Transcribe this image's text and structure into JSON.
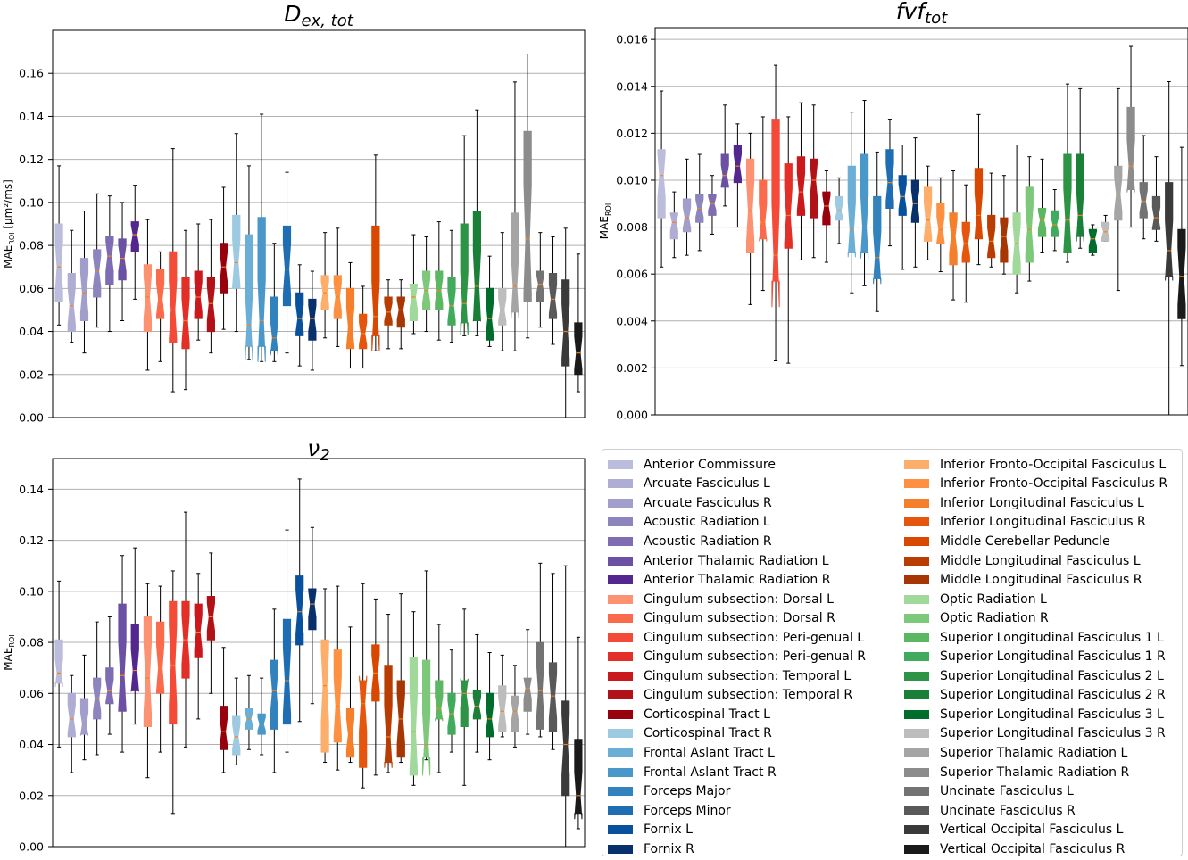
{
  "structures": [
    {
      "name": "Anterior Commissure",
      "color": "#bcbddc"
    },
    {
      "name": "Arcuate Fasciculus L",
      "color": "#b0add4"
    },
    {
      "name": "Arcuate Fasciculus R",
      "color": "#a29ecc"
    },
    {
      "name": "Acoustic Radiation L",
      "color": "#8c85be"
    },
    {
      "name": "Acoustic Radiation R",
      "color": "#7e6db2"
    },
    {
      "name": "Anterior Thalamic Radiation L",
      "color": "#6a51a3"
    },
    {
      "name": "Anterior Thalamic Radiation R",
      "color": "#54278f"
    },
    {
      "name": "Cingulum subsection: Dorsal L",
      "color": "#fc9272"
    },
    {
      "name": "Cingulum subsection: Dorsal R",
      "color": "#fb6a4a"
    },
    {
      "name": "Cingulum subsection: Peri-genual L",
      "color": "#f44b38"
    },
    {
      "name": "Cingulum subsection: Peri-genual R",
      "color": "#e32f27"
    },
    {
      "name": "Cingulum subsection: Temporal L",
      "color": "#cb181d"
    },
    {
      "name": "Cingulum subsection: Temporal R",
      "color": "#b11218"
    },
    {
      "name": "Corticospinal Tract L",
      "color": "#99000d"
    },
    {
      "name": "Corticospinal Tract R",
      "color": "#9ecae1"
    },
    {
      "name": "Frontal Aslant Tract L",
      "color": "#6baed6"
    },
    {
      "name": "Frontal Aslant Tract R",
      "color": "#4a98c9"
    },
    {
      "name": "Forceps Major",
      "color": "#3182bd"
    },
    {
      "name": "Forceps Minor",
      "color": "#1f6eb3"
    },
    {
      "name": "Fornix L",
      "color": "#08519c"
    },
    {
      "name": "Fornix R",
      "color": "#08306b"
    },
    {
      "name": "Inferior Fronto-Occipital Fasciculus L",
      "color": "#fdae6b"
    },
    {
      "name": "Inferior Fronto-Occipital Fasciculus R",
      "color": "#fd9141"
    },
    {
      "name": "Inferior Longitudinal Fasciculus L",
      "color": "#f57f2a"
    },
    {
      "name": "Inferior Longitudinal Fasciculus R",
      "color": "#e6550d"
    },
    {
      "name": "Middle Cerebellar Peduncle",
      "color": "#d94801"
    },
    {
      "name": "Middle Longitudinal Fasciculus L",
      "color": "#b93c02"
    },
    {
      "name": "Middle Longitudinal Fasciculus R",
      "color": "#a63603"
    },
    {
      "name": "Optic Radiation L",
      "color": "#a1d99b"
    },
    {
      "name": "Optic Radiation R",
      "color": "#7dc87b"
    },
    {
      "name": "Superior Longitudinal Fasciculus 1 L",
      "color": "#5cb762"
    },
    {
      "name": "Superior Longitudinal Fasciculus 1 R",
      "color": "#41ab5d"
    },
    {
      "name": "Superior Longitudinal Fasciculus 2 L",
      "color": "#2d9446"
    },
    {
      "name": "Superior Longitudinal Fasciculus 2 R",
      "color": "#1a8038"
    },
    {
      "name": "Superior Longitudinal Fasciculus 3 L",
      "color": "#006d2c"
    },
    {
      "name": "Superior Longitudinal Fasciculus 3 R",
      "color": "#bdbdbd"
    },
    {
      "name": "Superior Thalamic Radiation L",
      "color": "#a5a5a5"
    },
    {
      "name": "Superior Thalamic Radiation R",
      "color": "#8c8c8c"
    },
    {
      "name": "Uncinate Fasciculus L",
      "color": "#737373"
    },
    {
      "name": "Uncinate Fasciculus R",
      "color": "#595959"
    },
    {
      "name": "Vertical Occipital Fasciculus L",
      "color": "#3a3a3a"
    },
    {
      "name": "Vertical Occipital Fasciculus R",
      "color": "#1a1a1a"
    }
  ],
  "chart_data": [
    {
      "type": "boxplot",
      "title": "D",
      "title_sub": "ex, tot",
      "ylabel": "MAE_ROI [μm²/ms]",
      "ylabel_main": "MAE",
      "ylabel_sub": "ROI",
      "ylabel_units": " [μm²/ms]",
      "ylim": [
        0,
        0.18
      ],
      "yticks": [
        "0.00",
        "0.02",
        "0.04",
        "0.06",
        "0.08",
        "0.10",
        "0.12",
        "0.14",
        "0.16"
      ],
      "boxes": [
        [
          0.043,
          0.054,
          0.07,
          0.09,
          0.117
        ],
        [
          0.035,
          0.04,
          0.052,
          0.067,
          0.087
        ],
        [
          0.03,
          0.045,
          0.058,
          0.074,
          0.096
        ],
        [
          0.042,
          0.056,
          0.068,
          0.078,
          0.104
        ],
        [
          0.04,
          0.062,
          0.075,
          0.084,
          0.103
        ],
        [
          0.045,
          0.064,
          0.074,
          0.083,
          0.1
        ],
        [
          0.055,
          0.077,
          0.085,
          0.091,
          0.108
        ],
        [
          0.022,
          0.04,
          0.056,
          0.071,
          0.092
        ],
        [
          0.026,
          0.046,
          0.055,
          0.069,
          0.077
        ],
        [
          0.012,
          0.035,
          0.05,
          0.077,
          0.125
        ],
        [
          0.013,
          0.032,
          0.045,
          0.065,
          0.087
        ],
        [
          0.036,
          0.046,
          0.056,
          0.068,
          0.09
        ],
        [
          0.03,
          0.04,
          0.053,
          0.065,
          0.092
        ],
        [
          0.041,
          0.058,
          0.07,
          0.081,
          0.107
        ],
        [
          0.04,
          0.06,
          0.072,
          0.094,
          0.132
        ],
        [
          0.027,
          0.033,
          0.043,
          0.085,
          0.117
        ],
        [
          0.026,
          0.033,
          0.045,
          0.093,
          0.141
        ],
        [
          0.026,
          0.031,
          0.037,
          0.056,
          0.081
        ],
        [
          0.03,
          0.052,
          0.069,
          0.089,
          0.114
        ],
        [
          0.024,
          0.038,
          0.046,
          0.058,
          0.071
        ],
        [
          0.022,
          0.036,
          0.046,
          0.055,
          0.068
        ],
        [
          0.037,
          0.05,
          0.058,
          0.066,
          0.086
        ],
        [
          0.033,
          0.046,
          0.056,
          0.066,
          0.088
        ],
        [
          0.023,
          0.032,
          0.042,
          0.06,
          0.072
        ],
        [
          0.023,
          0.032,
          0.039,
          0.048,
          0.061
        ],
        [
          0.031,
          0.038,
          0.047,
          0.089,
          0.122
        ],
        [
          0.032,
          0.043,
          0.049,
          0.056,
          0.064
        ],
        [
          0.032,
          0.042,
          0.05,
          0.056,
          0.064
        ],
        [
          0.039,
          0.045,
          0.056,
          0.062,
          0.085
        ],
        [
          0.04,
          0.05,
          0.059,
          0.068,
          0.084
        ],
        [
          0.036,
          0.05,
          0.059,
          0.068,
          0.091
        ],
        [
          0.035,
          0.043,
          0.052,
          0.065,
          0.087
        ],
        [
          0.038,
          0.044,
          0.053,
          0.09,
          0.131
        ],
        [
          0.038,
          0.045,
          0.061,
          0.096,
          0.143
        ],
        [
          0.033,
          0.036,
          0.046,
          0.06,
          0.075
        ],
        [
          0.031,
          0.043,
          0.05,
          0.06,
          0.086
        ],
        [
          0.031,
          0.049,
          0.061,
          0.095,
          0.156
        ],
        [
          0.037,
          0.054,
          0.083,
          0.133,
          0.169
        ],
        [
          0.042,
          0.054,
          0.062,
          0.068,
          0.086
        ],
        [
          0.034,
          0.046,
          0.055,
          0.067,
          0.084
        ],
        [
          0.0,
          0.024,
          0.04,
          0.064,
          0.088
        ],
        [
          0.012,
          0.02,
          0.03,
          0.044,
          0.076
        ]
      ]
    },
    {
      "type": "boxplot",
      "title": "fvf",
      "title_sub": "tot",
      "ylabel": "MAE_ROI",
      "ylabel_main": "MAE",
      "ylabel_sub": "ROI",
      "ylabel_units": "",
      "ylim": [
        0,
        0.0165
      ],
      "yticks": [
        "0.000",
        "0.002",
        "0.004",
        "0.006",
        "0.008",
        "0.010",
        "0.012",
        "0.014",
        "0.016"
      ],
      "boxes": [
        [
          0.0063,
          0.0084,
          0.0102,
          0.0113,
          0.0138
        ],
        [
          0.0067,
          0.0075,
          0.0082,
          0.0086,
          0.0095
        ],
        [
          0.0068,
          0.0078,
          0.0084,
          0.0092,
          0.0109
        ],
        [
          0.007,
          0.0082,
          0.0088,
          0.0094,
          0.0111
        ],
        [
          0.0077,
          0.0085,
          0.009,
          0.0094,
          0.0102
        ],
        [
          0.0089,
          0.0097,
          0.0102,
          0.0111,
          0.0132
        ],
        [
          0.008,
          0.0099,
          0.0106,
          0.0115,
          0.0124
        ],
        [
          0.0047,
          0.0069,
          0.0087,
          0.0109,
          0.012
        ],
        [
          0.0053,
          0.0075,
          0.0082,
          0.01,
          0.0127
        ],
        [
          0.0023,
          0.0057,
          0.0068,
          0.0126,
          0.0149
        ],
        [
          0.0022,
          0.0071,
          0.0085,
          0.0107,
          0.0127
        ],
        [
          0.0066,
          0.0085,
          0.0095,
          0.011,
          0.0133
        ],
        [
          0.0067,
          0.0084,
          0.01,
          0.0109,
          0.0132
        ],
        [
          0.0065,
          0.0081,
          0.0089,
          0.0095,
          0.0104
        ],
        [
          0.0073,
          0.0083,
          0.0087,
          0.0093,
          0.0101
        ],
        [
          0.0052,
          0.0069,
          0.0079,
          0.0106,
          0.0129
        ],
        [
          0.0055,
          0.0069,
          0.008,
          0.0111,
          0.0134
        ],
        [
          0.0044,
          0.0058,
          0.0067,
          0.0093,
          0.0112
        ],
        [
          0.0072,
          0.0088,
          0.0099,
          0.0113,
          0.0126
        ],
        [
          0.0062,
          0.0085,
          0.0093,
          0.0102,
          0.0115
        ],
        [
          0.0063,
          0.0082,
          0.009,
          0.01,
          0.0118
        ],
        [
          0.0066,
          0.0074,
          0.0083,
          0.0097,
          0.0106
        ],
        [
          0.0061,
          0.0073,
          0.0079,
          0.009,
          0.0101
        ],
        [
          0.0049,
          0.0064,
          0.0076,
          0.0086,
          0.0104
        ],
        [
          0.0048,
          0.0065,
          0.0073,
          0.0082,
          0.0098
        ],
        [
          0.0064,
          0.0075,
          0.0085,
          0.0105,
          0.0128
        ],
        [
          0.0063,
          0.0067,
          0.0074,
          0.0085,
          0.0103
        ],
        [
          0.006,
          0.0065,
          0.0076,
          0.0084,
          0.0102
        ],
        [
          0.0052,
          0.006,
          0.0073,
          0.0086,
          0.0115
        ],
        [
          0.0057,
          0.0065,
          0.0079,
          0.0097,
          0.011
        ],
        [
          0.0069,
          0.0076,
          0.0083,
          0.0088,
          0.0109
        ],
        [
          0.007,
          0.0076,
          0.0081,
          0.0087,
          0.0096
        ],
        [
          0.0065,
          0.0069,
          0.0083,
          0.0111,
          0.0141
        ],
        [
          0.0071,
          0.0076,
          0.0085,
          0.0111,
          0.0139
        ],
        [
          0.0068,
          0.0069,
          0.0075,
          0.0079,
          0.0081
        ],
        [
          0.0074,
          0.0074,
          0.0078,
          0.0082,
          0.0085
        ],
        [
          0.0053,
          0.0083,
          0.0094,
          0.0106,
          0.0139
        ],
        [
          0.008,
          0.0096,
          0.0106,
          0.0131,
          0.0157
        ],
        [
          0.0075,
          0.0084,
          0.0091,
          0.0099,
          0.0119
        ],
        [
          0.0074,
          0.0079,
          0.0084,
          0.0093,
          0.011
        ],
        [
          0.0,
          0.0059,
          0.007,
          0.0099,
          0.0142
        ],
        [
          0.0021,
          0.0041,
          0.0059,
          0.0079,
          0.0114
        ]
      ]
    },
    {
      "type": "boxplot",
      "title": "ν",
      "title_sub": "2",
      "ylabel": "MAE_ROI",
      "ylabel_main": "MAE",
      "ylabel_sub": "ROI",
      "ylabel_units": "",
      "ylim": [
        0,
        0.152
      ],
      "yticks": [
        "0.00",
        "0.02",
        "0.04",
        "0.06",
        "0.08",
        "0.10",
        "0.12",
        "0.14"
      ],
      "boxes": [
        [
          0.039,
          0.064,
          0.068,
          0.081,
          0.104
        ],
        [
          0.029,
          0.043,
          0.05,
          0.06,
          0.067
        ],
        [
          0.034,
          0.044,
          0.048,
          0.058,
          0.075
        ],
        [
          0.036,
          0.05,
          0.058,
          0.066,
          0.088
        ],
        [
          0.044,
          0.056,
          0.061,
          0.07,
          0.09
        ],
        [
          0.037,
          0.053,
          0.067,
          0.095,
          0.114
        ],
        [
          0.048,
          0.061,
          0.069,
          0.087,
          0.117
        ],
        [
          0.027,
          0.047,
          0.066,
          0.09,
          0.103
        ],
        [
          0.037,
          0.06,
          0.07,
          0.088,
          0.102
        ],
        [
          0.013,
          0.048,
          0.071,
          0.096,
          0.108
        ],
        [
          0.039,
          0.066,
          0.081,
          0.096,
          0.131
        ],
        [
          0.05,
          0.074,
          0.084,
          0.095,
          0.107
        ],
        [
          0.06,
          0.081,
          0.09,
          0.098,
          0.115
        ],
        [
          0.029,
          0.038,
          0.045,
          0.055,
          0.078
        ],
        [
          0.032,
          0.036,
          0.043,
          0.051,
          0.066
        ],
        [
          0.038,
          0.046,
          0.05,
          0.054,
          0.067
        ],
        [
          0.036,
          0.044,
          0.048,
          0.052,
          0.066
        ],
        [
          0.029,
          0.046,
          0.061,
          0.073,
          0.093
        ],
        [
          0.037,
          0.048,
          0.065,
          0.089,
          0.124
        ],
        [
          0.049,
          0.079,
          0.092,
          0.106,
          0.144
        ],
        [
          0.056,
          0.085,
          0.095,
          0.101,
          0.125
        ],
        [
          0.033,
          0.037,
          0.063,
          0.081,
          0.101
        ],
        [
          0.03,
          0.041,
          0.055,
          0.077,
          0.102
        ],
        [
          0.033,
          0.035,
          0.044,
          0.054,
          0.086
        ],
        [
          0.023,
          0.031,
          0.056,
          0.065,
          0.103
        ],
        [
          0.028,
          0.057,
          0.068,
          0.079,
          0.097
        ],
        [
          0.029,
          0.033,
          0.043,
          0.071,
          0.091
        ],
        [
          0.033,
          0.035,
          0.05,
          0.065,
          0.099
        ],
        [
          0.024,
          0.028,
          0.045,
          0.074,
          0.092
        ],
        [
          0.034,
          0.035,
          0.04,
          0.073,
          0.108
        ],
        [
          0.029,
          0.05,
          0.054,
          0.065,
          0.087
        ],
        [
          0.037,
          0.044,
          0.052,
          0.06,
          0.077
        ],
        [
          0.024,
          0.047,
          0.06,
          0.065,
          0.093
        ],
        [
          0.037,
          0.05,
          0.055,
          0.061,
          0.083
        ],
        [
          0.034,
          0.043,
          0.05,
          0.06,
          0.076
        ],
        [
          0.043,
          0.045,
          0.053,
          0.063,
          0.075
        ],
        [
          0.039,
          0.045,
          0.053,
          0.059,
          0.071
        ],
        [
          0.044,
          0.053,
          0.062,
          0.066,
          0.085
        ],
        [
          0.043,
          0.046,
          0.061,
          0.08,
          0.111
        ],
        [
          0.038,
          0.045,
          0.059,
          0.072,
          0.107
        ],
        [
          0.0,
          0.02,
          0.04,
          0.057,
          0.11
        ],
        [
          0.007,
          0.013,
          0.02,
          0.042,
          0.082
        ]
      ]
    }
  ]
}
